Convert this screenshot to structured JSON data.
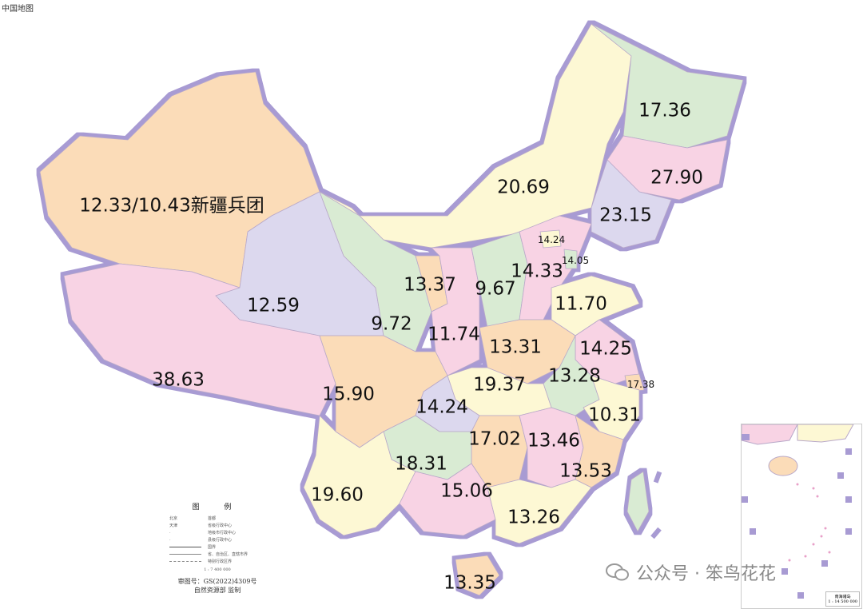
{
  "title": "中国地图",
  "colors": {
    "yellow": "#fdf8d4",
    "pink": "#f8d3e4",
    "green": "#d9ebd3",
    "peach": "#fbdcb8",
    "lavender": "#dcd8ee",
    "border_glow": "#a89bd3",
    "sea": "#ffffff"
  },
  "regions": [
    {
      "id": "xinjiang",
      "value": "12.33/10.43新疆兵团",
      "color": "peach"
    },
    {
      "id": "tibet",
      "value": "38.63",
      "color": "pink"
    },
    {
      "id": "qinghai",
      "value": "12.59",
      "color": "lavender"
    },
    {
      "id": "gansu",
      "value": "9.72",
      "color": "green"
    },
    {
      "id": "inner-mongolia",
      "value": "20.69",
      "color": "yellow"
    },
    {
      "id": "heilongjiang",
      "value": "17.36",
      "color": "green"
    },
    {
      "id": "jilin",
      "value": "27.90",
      "color": "pink"
    },
    {
      "id": "liaoning",
      "value": "23.15",
      "color": "lavender"
    },
    {
      "id": "beijing",
      "value": "14.24",
      "color": "yellow"
    },
    {
      "id": "tianjin",
      "value": "14.05",
      "color": "green"
    },
    {
      "id": "hebei",
      "value": "14.33",
      "color": "pink"
    },
    {
      "id": "shanxi",
      "value": "9.67",
      "color": "green"
    },
    {
      "id": "ningxia",
      "value": "13.37",
      "color": "peach"
    },
    {
      "id": "shaanxi",
      "value": "11.74",
      "color": "pink"
    },
    {
      "id": "shandong",
      "value": "11.70",
      "color": "yellow"
    },
    {
      "id": "henan",
      "value": "13.31",
      "color": "peach"
    },
    {
      "id": "jiangsu",
      "value": "14.25",
      "color": "pink"
    },
    {
      "id": "anhui",
      "value": "13.28",
      "color": "green"
    },
    {
      "id": "shanghai",
      "value": "17.38",
      "color": "peach"
    },
    {
      "id": "zhejiang",
      "value": "10.31",
      "color": "yellow"
    },
    {
      "id": "hubei",
      "value": "19.37",
      "color": "yellow"
    },
    {
      "id": "chongqing",
      "value": "14.24",
      "color": "lavender"
    },
    {
      "id": "sichuan",
      "value": "15.90",
      "color": "peach"
    },
    {
      "id": "hunan",
      "value": "17.02",
      "color": "peach"
    },
    {
      "id": "jiangxi",
      "value": "13.46",
      "color": "pink"
    },
    {
      "id": "fujian",
      "value": "13.53",
      "color": "peach"
    },
    {
      "id": "guizhou",
      "value": "18.31",
      "color": "green"
    },
    {
      "id": "yunnan",
      "value": "19.60",
      "color": "yellow"
    },
    {
      "id": "guangxi",
      "value": "15.06",
      "color": "pink"
    },
    {
      "id": "guangdong",
      "value": "13.26",
      "color": "yellow"
    },
    {
      "id": "hainan",
      "value": "13.35",
      "color": "peach"
    },
    {
      "id": "taiwan",
      "value": "",
      "color": "green"
    }
  ],
  "legend": {
    "heading": "图 例",
    "items": [
      {
        "key": "北京",
        "label": "首都"
      },
      {
        "key": "天津",
        "label": "省级行政中心"
      },
      {
        "key": "",
        "label": "地级市行政中心"
      },
      {
        "key": "",
        "label": "县级行政中心"
      },
      {
        "key": "",
        "label": "国界"
      },
      {
        "key": "",
        "label": "省、自治区、直辖市界"
      },
      {
        "key": "",
        "label": "特别行政区界"
      }
    ],
    "scale": "1 : 7 400 000",
    "approval": "审图号：GS(2022)4309号",
    "publisher": "自然资源部 监制"
  },
  "inset": {
    "name": "南海诸岛",
    "scale": "1 : 14 500 000"
  },
  "watermark": {
    "icon": "wechat-icon",
    "text": "公众号 · 笨鸟花花"
  }
}
